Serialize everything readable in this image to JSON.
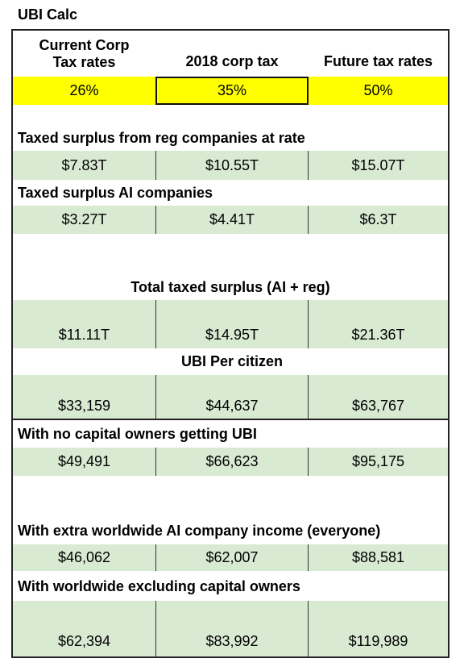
{
  "title": "UBI Calc",
  "header": [
    "Current Corp\nTax rates",
    "2018 corp tax",
    "Future tax rates"
  ],
  "rates": [
    "26%",
    "35%",
    "50%"
  ],
  "sections": [
    {
      "label": "Taxed surplus from reg companies at rate",
      "values": [
        "$7.83T",
        "$10.55T",
        "$15.07T"
      ]
    },
    {
      "label": "Taxed surplus AI companies",
      "values": [
        "$3.27T",
        "$4.41T",
        "$6.3T"
      ]
    },
    {
      "label": "Total taxed surplus (AI + reg)",
      "values": [
        "$11.11T",
        "$14.95T",
        "$21.36T"
      ]
    },
    {
      "label": "UBI Per citizen",
      "values": [
        "$33,159",
        "$44,637",
        "$63,767"
      ]
    },
    {
      "label": "With no capital owners getting UBI",
      "values": [
        "$49,491",
        "$66,623",
        "$95,175"
      ]
    },
    {
      "label": "With extra worldwide AI company income (everyone)",
      "values": [
        "$46,062",
        "$62,007",
        "$88,581"
      ]
    },
    {
      "label": "With worldwide excluding capital owners",
      "values": [
        "$62,394",
        "$83,992",
        "$119,989"
      ]
    }
  ]
}
